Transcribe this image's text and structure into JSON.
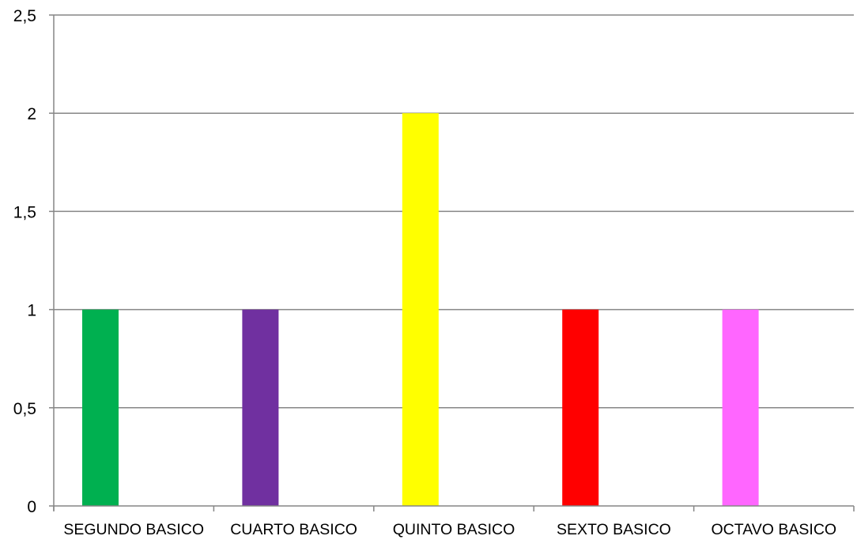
{
  "chart_data": {
    "type": "bar",
    "title": "",
    "xlabel": "",
    "ylabel": "",
    "categories": [
      "SEGUNDO BASICO",
      "CUARTO BASICO",
      "QUINTO BASICO",
      "SEXTO BASICO",
      "OCTAVO BASICO"
    ],
    "values": [
      1,
      1,
      2,
      1,
      1
    ],
    "bar_colors": [
      "#00B050",
      "#7030A0",
      "#FFFF00",
      "#FF0000",
      "#FF66FF"
    ],
    "ylim": [
      0,
      2.5
    ],
    "yticks": [
      0,
      0.5,
      1,
      1.5,
      2,
      2.5
    ],
    "ytick_labels": [
      "0",
      "0,5",
      "1",
      "1,5",
      "2",
      "2,5"
    ],
    "grid": true,
    "legend": "none"
  }
}
